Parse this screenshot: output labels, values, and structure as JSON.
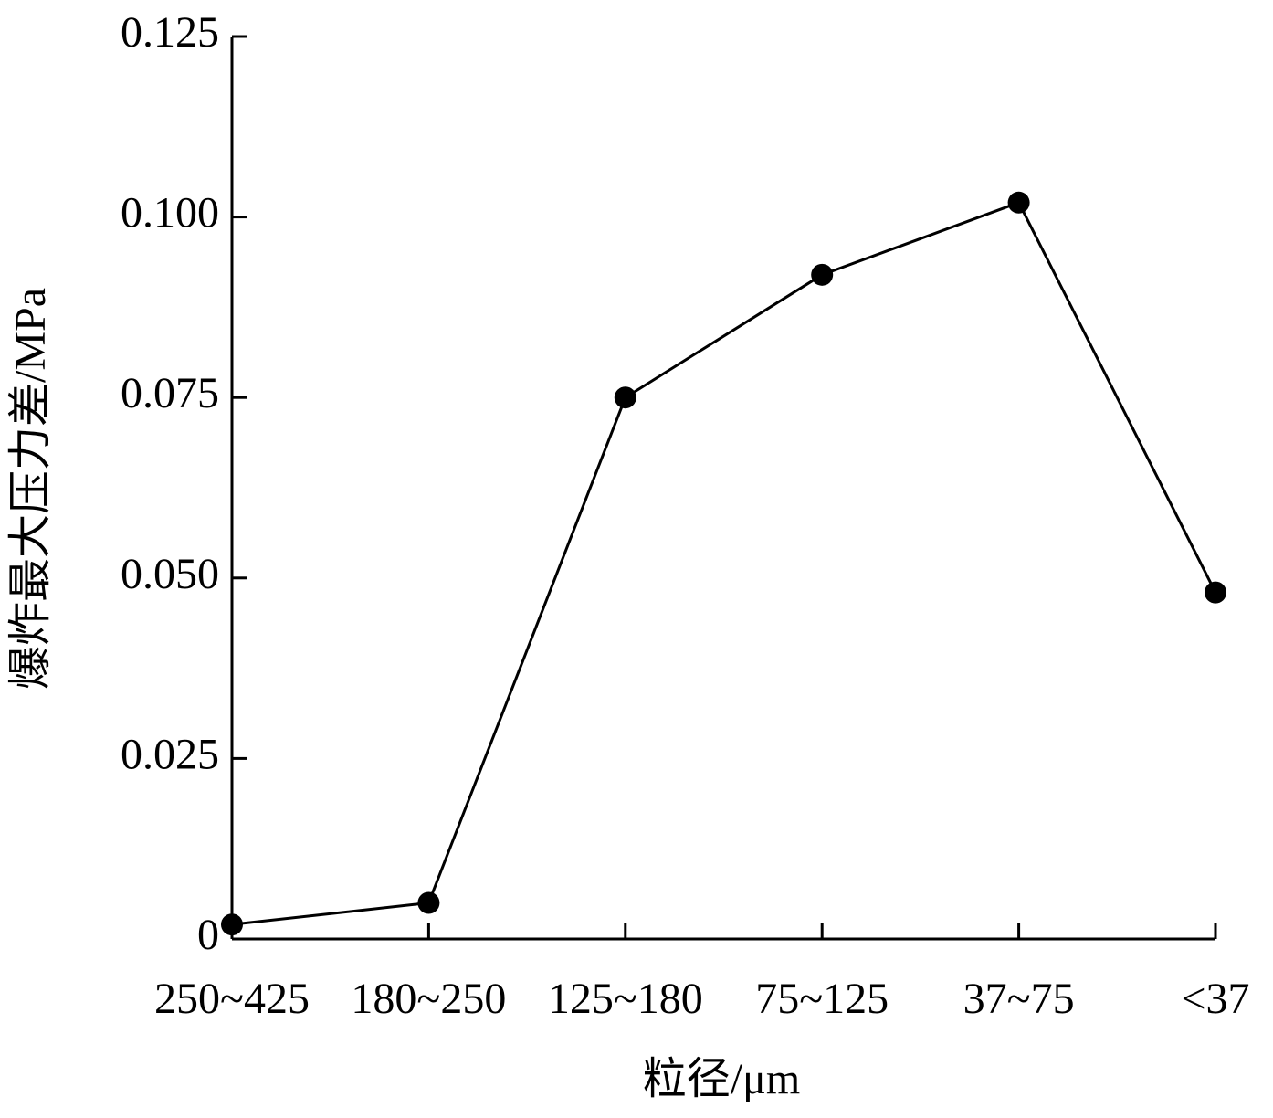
{
  "chart_data": {
    "type": "line",
    "x_label": "粒径/μm",
    "y_label": "爆炸最大压力差/MPa",
    "categories": [
      "250~425",
      "180~250",
      "125~180",
      "75~125",
      "37~75",
      "<37"
    ],
    "series": [
      {
        "name": "爆炸最大压力差",
        "color": "#000000",
        "values": [
          0.002,
          0.005,
          0.075,
          0.092,
          0.102,
          0.048
        ]
      }
    ],
    "ylim": [
      0,
      0.125
    ],
    "yticks": [
      0,
      0.025,
      {
        "value": 0.05,
        "label": "0.050"
      },
      0.075,
      {
        "value": 0.1,
        "label": "0.100"
      },
      0.125
    ],
    "grid": false
  }
}
